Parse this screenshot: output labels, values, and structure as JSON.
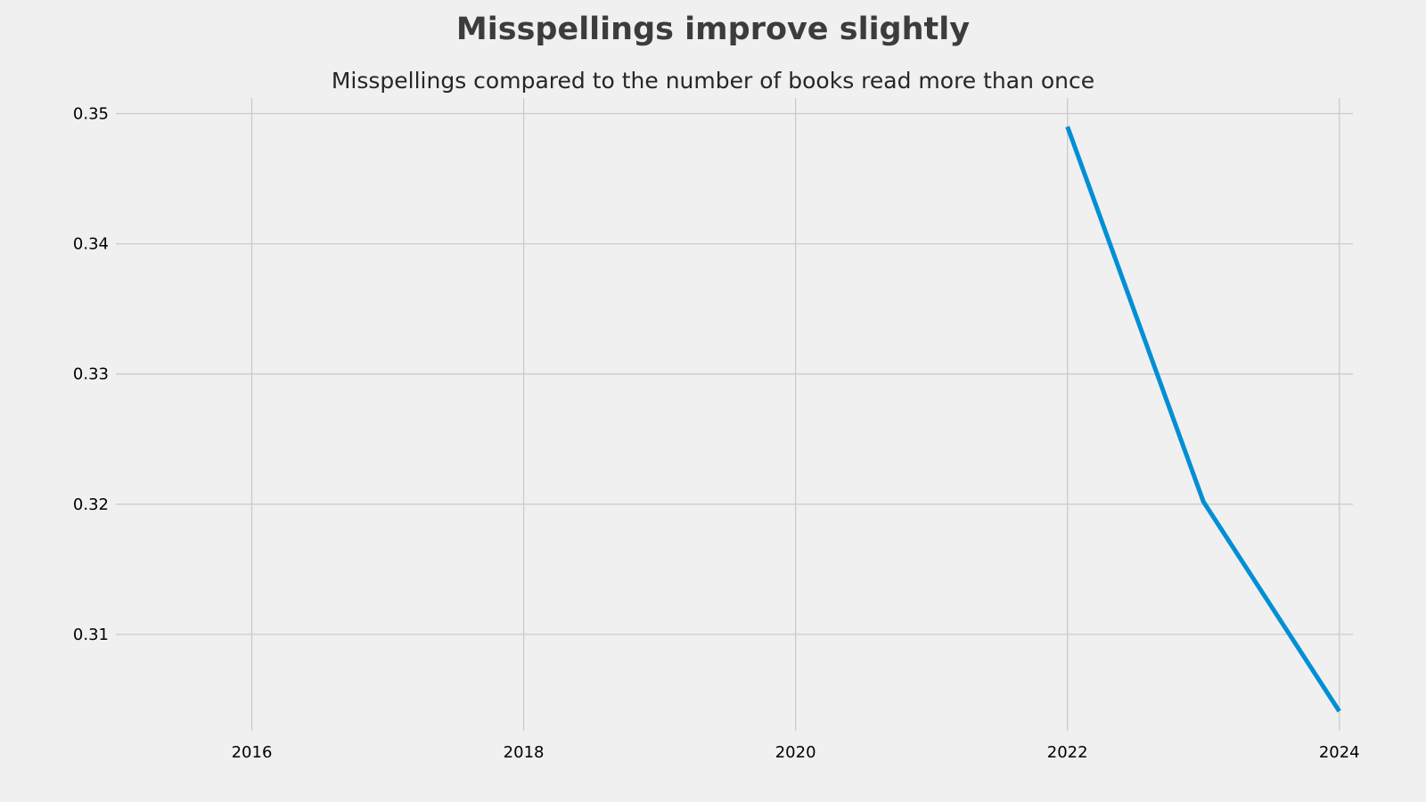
{
  "chart_data": {
    "type": "line",
    "suptitle": "Misspellings improve slightly",
    "title": "Misspellings compared to the number of books read more than once",
    "xlabel": "",
    "ylabel": "",
    "xlim": [
      2015,
      2024.1
    ],
    "ylim": [
      0.3026,
      0.3512
    ],
    "xticks": [
      2016,
      2018,
      2020,
      2022,
      2024
    ],
    "yticks": [
      0.31,
      0.32,
      0.33,
      0.34,
      0.35
    ],
    "grid": true,
    "legend": "none",
    "series": [
      {
        "color": "#008fd5",
        "x": [
          2022,
          2023,
          2024
        ],
        "y": [
          0.349,
          0.3202,
          0.3041
        ]
      }
    ]
  }
}
